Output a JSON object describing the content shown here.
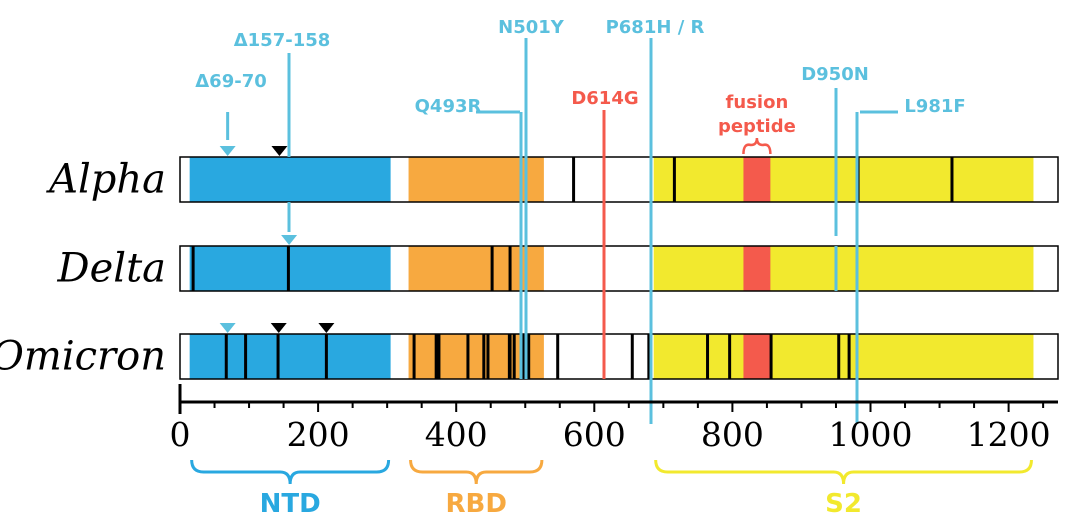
{
  "chart_data": {
    "type": "genome-map",
    "axis": {
      "min": 0,
      "max": 1273,
      "ticks": [
        0,
        200,
        400,
        600,
        800,
        1000,
        1200
      ],
      "minor_step": 50
    },
    "colors": {
      "NTD": "#29a8e0",
      "RBD": "#f7a940",
      "S2": "#f2e92e",
      "fusion": "#f45a4c",
      "mutation_blue": "#5bc0de",
      "mutation_red": "#f45a4c",
      "bar_outline": "#000000"
    },
    "domains": [
      {
        "id": "NTD",
        "label": "NTD",
        "start": 14,
        "end": 305
      },
      {
        "id": "RBD",
        "label": "RBD",
        "start": 331,
        "end": 527
      },
      {
        "id": "S2",
        "label": "S2",
        "start": 686,
        "end": 1236
      }
    ],
    "fusion_peptide": {
      "label_line1": "fusion",
      "label_line2": "peptide",
      "start": 816,
      "end": 855
    },
    "variants": [
      {
        "name": "Alpha",
        "black_lines": [
          570,
          716,
          982,
          1118
        ],
        "deletion_markers": [
          {
            "pos": 144,
            "color": "black"
          },
          {
            "pos": 69,
            "color": "blue"
          }
        ],
        "blue_lines": [
          501,
          681
        ]
      },
      {
        "name": "Delta",
        "black_lines": [
          19,
          157,
          452,
          478
        ],
        "deletion_markers": [
          {
            "pos": 158,
            "color": "blue"
          }
        ],
        "blue_lines": [
          614,
          681,
          950
        ]
      },
      {
        "name": "Omicron",
        "black_lines": [
          67,
          95,
          142,
          212,
          339,
          371,
          373,
          375,
          417,
          440,
          446,
          477,
          478,
          484,
          496,
          498,
          505,
          547,
          655,
          679,
          764,
          796,
          856,
          954,
          969
        ],
        "deletion_markers": [
          {
            "pos": 69,
            "color": "blue"
          },
          {
            "pos": 143,
            "color": "black"
          },
          {
            "pos": 212,
            "color": "black"
          }
        ],
        "blue_lines": [
          493,
          501,
          681
        ]
      }
    ],
    "mutations": [
      {
        "label": "Δ69-70",
        "pos": 69,
        "color": "blue"
      },
      {
        "label": "Δ157-158",
        "pos": 157,
        "color": "blue"
      },
      {
        "label": "Q493R",
        "pos": 493,
        "color": "blue"
      },
      {
        "label": "N501Y",
        "pos": 501,
        "color": "blue"
      },
      {
        "label": "D614G",
        "pos": 614,
        "color": "red"
      },
      {
        "label": "P681H / R",
        "pos": 681,
        "color": "blue"
      },
      {
        "label": "D950N",
        "pos": 950,
        "color": "blue"
      },
      {
        "label": "L981F",
        "pos": 981,
        "color": "blue"
      }
    ]
  }
}
